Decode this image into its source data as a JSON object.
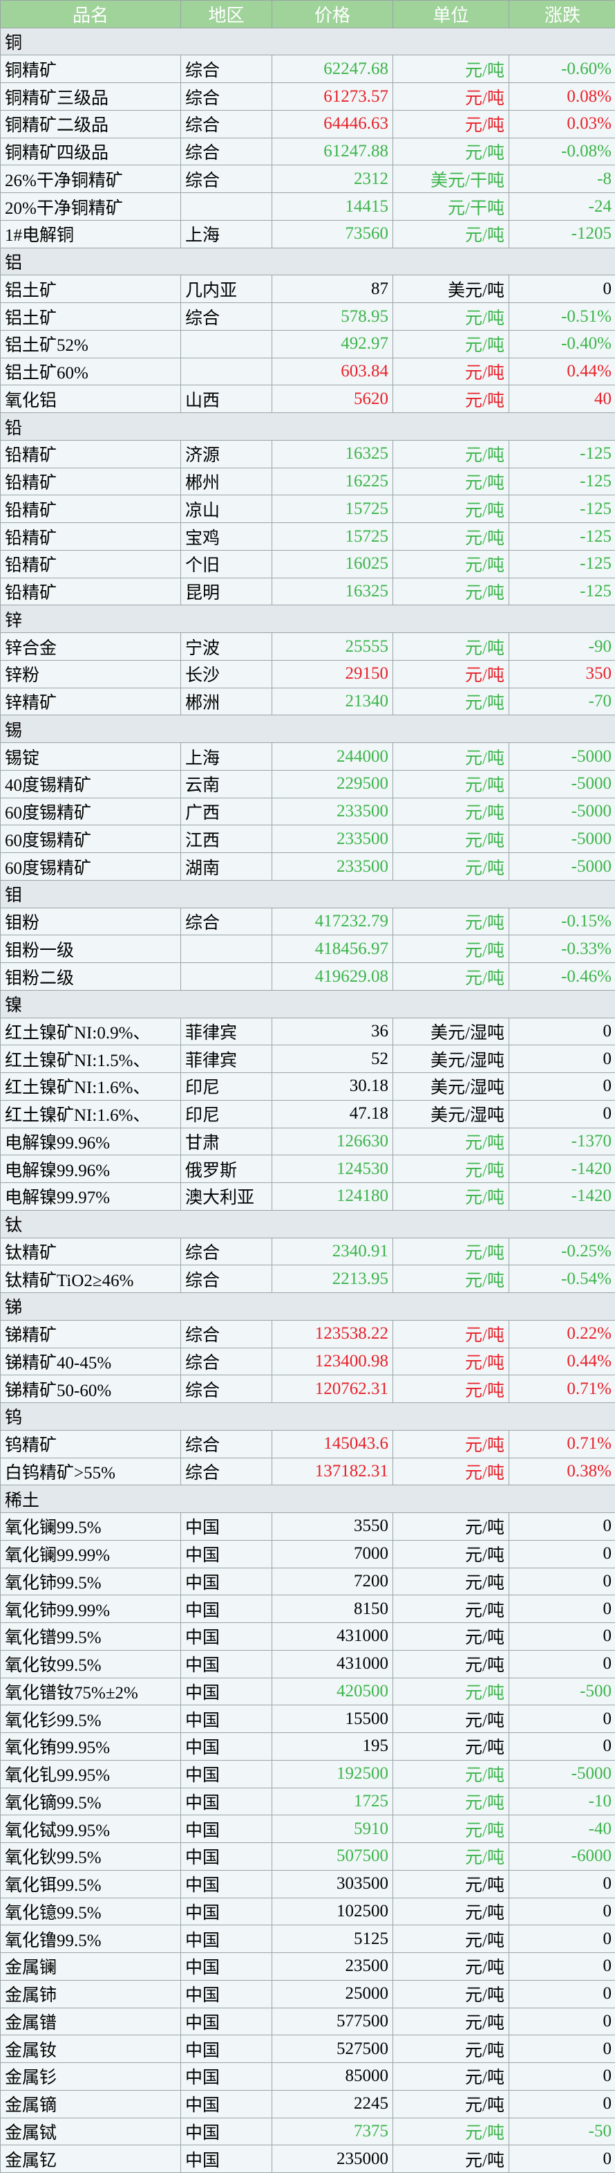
{
  "header": [
    "品名",
    "地区",
    "价格",
    "单位",
    "涨跌"
  ],
  "sections": [
    {
      "title": "铜",
      "rows": [
        {
          "cells": [
            "铜精矿",
            "综合",
            "62247.68",
            "元/吨",
            "-0.60%"
          ],
          "color": "#3cb44b"
        },
        {
          "cells": [
            "铜精矿三级品",
            "综合",
            "61273.57",
            "元/吨",
            "0.08%"
          ],
          "color": "#e8202a"
        },
        {
          "cells": [
            "铜精矿二级品",
            "综合",
            "64446.63",
            "元/吨",
            "0.03%"
          ],
          "color": "#e8202a"
        },
        {
          "cells": [
            "铜精矿四级品",
            "综合",
            "61247.88",
            "元/吨",
            "-0.08%"
          ],
          "color": "#3cb44b"
        },
        {
          "cells": [
            "26%干净铜精矿",
            "综合",
            "2312",
            "美元/干吨",
            "-8"
          ],
          "color": "#3cb44b"
        },
        {
          "cells": [
            "20%干净铜精矿",
            null,
            "14415",
            "元/干吨",
            "-24"
          ],
          "color": "#3cb44b"
        },
        {
          "cells": [
            "1#电解铜",
            "上海",
            "73560",
            "元/吨",
            "-1205"
          ],
          "color": "#3cb44b"
        }
      ]
    },
    {
      "title": "铝",
      "rows": [
        {
          "cells": [
            "铝土矿",
            "几内亚",
            "87",
            "美元/吨",
            "0"
          ],
          "color": "#000000"
        },
        {
          "cells": [
            "铝土矿",
            "综合",
            "578.95",
            "元/吨",
            "-0.51%"
          ],
          "color": "#3cb44b"
        },
        {
          "cells": [
            "铝土矿52%",
            null,
            "492.97",
            "元/吨",
            "-0.40%"
          ],
          "color": "#3cb44b"
        },
        {
          "cells": [
            "铝土矿60%",
            null,
            "603.84",
            "元/吨",
            "0.44%"
          ],
          "color": "#e8202a"
        },
        {
          "cells": [
            "氧化铝",
            "山西",
            "5620",
            "元/吨",
            "40"
          ],
          "color": "#e8202a"
        }
      ]
    },
    {
      "title": "铅",
      "rows": [
        {
          "cells": [
            "铅精矿",
            "济源",
            "16325",
            "元/吨",
            "-125"
          ],
          "color": "#3cb44b"
        },
        {
          "cells": [
            "铅精矿",
            "郴州",
            "16225",
            "元/吨",
            "-125"
          ],
          "color": "#3cb44b"
        },
        {
          "cells": [
            "铅精矿",
            "凉山",
            "15725",
            "元/吨",
            "-125"
          ],
          "color": "#3cb44b"
        },
        {
          "cells": [
            "铅精矿",
            "宝鸡",
            "15725",
            "元/吨",
            "-125"
          ],
          "color": "#3cb44b"
        },
        {
          "cells": [
            "铅精矿",
            "个旧",
            "16025",
            "元/吨",
            "-125"
          ],
          "color": "#3cb44b"
        },
        {
          "cells": [
            "铅精矿",
            "昆明",
            "16325",
            "元/吨",
            "-125"
          ],
          "color": "#3cb44b"
        }
      ]
    },
    {
      "title": "锌",
      "rows": [
        {
          "cells": [
            "锌合金",
            "宁波",
            "25555",
            "元/吨",
            "-90"
          ],
          "color": "#3cb44b"
        },
        {
          "cells": [
            "锌粉",
            "长沙",
            "29150",
            "元/吨",
            "350"
          ],
          "color": "#e8202a"
        },
        {
          "cells": [
            "锌精矿",
            "郴洲",
            "21340",
            "元/吨",
            "-70"
          ],
          "color": "#3cb44b"
        }
      ]
    },
    {
      "title": "锡",
      "rows": [
        {
          "cells": [
            "锡锭",
            "上海",
            "244000",
            "元/吨",
            "-5000"
          ],
          "color": "#3cb44b"
        },
        {
          "cells": [
            "40度锡精矿",
            "云南",
            "229500",
            "元/吨",
            "-5000"
          ],
          "color": "#3cb44b"
        },
        {
          "cells": [
            "60度锡精矿",
            "广西",
            "233500",
            "元/吨",
            "-5000"
          ],
          "color": "#3cb44b"
        },
        {
          "cells": [
            "60度锡精矿",
            "江西",
            "233500",
            "元/吨",
            "-5000"
          ],
          "color": "#3cb44b"
        },
        {
          "cells": [
            "60度锡精矿",
            "湖南",
            "233500",
            "元/吨",
            "-5000"
          ],
          "color": "#3cb44b"
        }
      ]
    },
    {
      "title": "钼",
      "rows": [
        {
          "cells": [
            "钼粉",
            "综合",
            "417232.79",
            "元/吨",
            "-0.15%"
          ],
          "color": "#3cb44b"
        },
        {
          "cells": [
            "钼粉一级",
            null,
            "418456.97",
            "元/吨",
            "-0.33%"
          ],
          "color": "#3cb44b"
        },
        {
          "cells": [
            "钼粉二级",
            null,
            "419629.08",
            "元/吨",
            "-0.46%"
          ],
          "color": "#3cb44b"
        }
      ]
    },
    {
      "title": "镍",
      "rows": [
        {
          "cells": [
            "红土镍矿NI:0.9%、",
            "菲律宾",
            "36",
            "美元/湿吨",
            "0"
          ],
          "color": "#000000"
        },
        {
          "cells": [
            "红土镍矿NI:1.5%、",
            "菲律宾",
            "52",
            "美元/湿吨",
            "0"
          ],
          "color": "#000000"
        },
        {
          "cells": [
            "红土镍矿NI:1.6%、",
            "印尼",
            "30.18",
            "美元/湿吨",
            "0"
          ],
          "color": "#000000"
        },
        {
          "cells": [
            "红土镍矿NI:1.6%、",
            "印尼",
            "47.18",
            "美元/湿吨",
            "0"
          ],
          "color": "#000000"
        },
        {
          "cells": [
            "电解镍99.96%",
            "甘肃",
            "126630",
            "元/吨",
            "-1370"
          ],
          "color": "#3cb44b"
        },
        {
          "cells": [
            "电解镍99.96%",
            "俄罗斯",
            "124530",
            "元/吨",
            "-1420"
          ],
          "color": "#3cb44b"
        },
        {
          "cells": [
            "电解镍99.97%",
            "澳大利亚",
            "124180",
            "元/吨",
            "-1420"
          ],
          "color": "#3cb44b"
        }
      ]
    },
    {
      "title": "钛",
      "rows": [
        {
          "cells": [
            "钛精矿",
            "综合",
            "2340.91",
            "元/吨",
            "-0.25%"
          ],
          "color": "#3cb44b"
        },
        {
          "cells": [
            "钛精矿TiO2≥46%",
            "综合",
            "2213.95",
            "元/吨",
            "-0.54%"
          ],
          "color": "#3cb44b"
        }
      ]
    },
    {
      "title": "锑",
      "rows": [
        {
          "cells": [
            "锑精矿",
            "综合",
            "123538.22",
            "元/吨",
            "0.22%"
          ],
          "color": "#e8202a"
        },
        {
          "cells": [
            "锑精矿40-45%",
            "综合",
            "123400.98",
            "元/吨",
            "0.44%"
          ],
          "color": "#e8202a"
        },
        {
          "cells": [
            "锑精矿50-60%",
            "综合",
            "120762.31",
            "元/吨",
            "0.71%"
          ],
          "color": "#e8202a"
        }
      ]
    },
    {
      "title": "钨",
      "rows": [
        {
          "cells": [
            "钨精矿",
            "综合",
            "145043.6",
            "元/吨",
            "0.71%"
          ],
          "color": "#e8202a"
        },
        {
          "cells": [
            "白钨精矿>55%",
            "综合",
            "137182.31",
            "元/吨",
            "0.38%"
          ],
          "color": "#e8202a"
        }
      ]
    },
    {
      "title": "稀土",
      "rows": [
        {
          "cells": [
            "氧化镧99.5%",
            "中国",
            "3550",
            "元/吨",
            "0"
          ],
          "color": "#000000"
        },
        {
          "cells": [
            "氧化镧99.99%",
            "中国",
            "7000",
            "元/吨",
            "0"
          ],
          "color": "#000000"
        },
        {
          "cells": [
            "氧化铈99.5%",
            "中国",
            "7200",
            "元/吨",
            "0"
          ],
          "color": "#000000"
        },
        {
          "cells": [
            "氧化铈99.99%",
            "中国",
            "8150",
            "元/吨",
            "0"
          ],
          "color": "#000000"
        },
        {
          "cells": [
            "氧化镨99.5%",
            "中国",
            "431000",
            "元/吨",
            "0"
          ],
          "color": "#000000"
        },
        {
          "cells": [
            "氧化钕99.5%",
            "中国",
            "431000",
            "元/吨",
            "0"
          ],
          "color": "#000000"
        },
        {
          "cells": [
            "氧化镨钕75%±2%",
            "中国",
            "420500",
            "元/吨",
            "-500"
          ],
          "color": "#3cb44b"
        },
        {
          "cells": [
            "氧化钐99.5%",
            "中国",
            "15500",
            "元/吨",
            "0"
          ],
          "color": "#000000"
        },
        {
          "cells": [
            "氧化铕99.95%",
            "中国",
            "195",
            "元/吨",
            "0"
          ],
          "color": "#000000"
        },
        {
          "cells": [
            "氧化钆99.95%",
            "中国",
            "192500",
            "元/吨",
            "-5000"
          ],
          "color": "#3cb44b"
        },
        {
          "cells": [
            "氧化镝99.5%",
            "中国",
            "1725",
            "元/吨",
            "-10"
          ],
          "color": "#3cb44b"
        },
        {
          "cells": [
            "氧化铽99.95%",
            "中国",
            "5910",
            "元/吨",
            "-40"
          ],
          "color": "#3cb44b"
        },
        {
          "cells": [
            "氧化钬99.5%",
            "中国",
            "507500",
            "元/吨",
            "-6000"
          ],
          "color": "#3cb44b"
        },
        {
          "cells": [
            "氧化铒99.5%",
            "中国",
            "303500",
            "元/吨",
            "0"
          ],
          "color": "#000000"
        },
        {
          "cells": [
            "氧化镱99.5%",
            "中国",
            "102500",
            "元/吨",
            "0"
          ],
          "color": "#000000"
        },
        {
          "cells": [
            "氧化镥99.5%",
            "中国",
            "5125",
            "元/吨",
            "0"
          ],
          "color": "#000000"
        },
        {
          "cells": [
            "金属镧",
            "中国",
            "23500",
            "元/吨",
            "0"
          ],
          "color": "#000000"
        },
        {
          "cells": [
            "金属铈",
            "中国",
            "25000",
            "元/吨",
            "0"
          ],
          "color": "#000000"
        },
        {
          "cells": [
            "金属镨",
            "中国",
            "577500",
            "元/吨",
            "0"
          ],
          "color": "#000000"
        },
        {
          "cells": [
            "金属钕",
            "中国",
            "527500",
            "元/吨",
            "0"
          ],
          "color": "#000000"
        },
        {
          "cells": [
            "金属钐",
            "中国",
            "85000",
            "元/吨",
            "0"
          ],
          "color": "#000000"
        },
        {
          "cells": [
            "金属镝",
            "中国",
            "2245",
            "元/吨",
            "0"
          ],
          "color": "#000000"
        },
        {
          "cells": [
            "金属铽",
            "中国",
            "7375",
            "元/吨",
            "-50"
          ],
          "color": "#3cb44b"
        },
        {
          "cells": [
            "金属钇",
            "中国",
            "235000",
            "元/吨",
            "0"
          ],
          "color": "#000000"
        }
      ]
    }
  ]
}
